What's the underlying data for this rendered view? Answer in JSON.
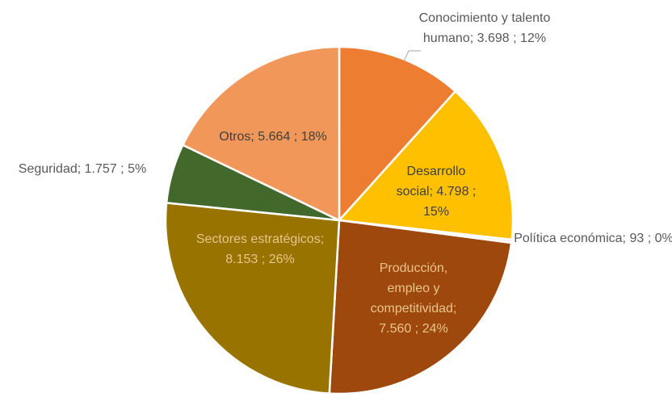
{
  "chart_data": {
    "type": "pie",
    "categories": [
      "Conocimiento y talento humano",
      "Desarrollo social",
      "Política económica",
      "Producción, empleo y competitividad",
      "Sectores estratégicos",
      "Seguridad",
      "Otros"
    ],
    "values": [
      3698,
      4798,
      93,
      7560,
      8153,
      1757,
      5664
    ],
    "value_labels": [
      "3.698",
      "4.798",
      "93",
      "7.560",
      "8.153",
      "1.757",
      "5.664"
    ],
    "percents": [
      12,
      15,
      0,
      24,
      26,
      5,
      18
    ],
    "percent_labels": [
      "12%",
      "15%",
      "0%",
      "24%",
      "26%",
      "5%",
      "18%"
    ],
    "label_separator": ";",
    "colors": [
      "#ED7D31",
      "#FFC000",
      "#F2F2F2",
      "#9E480E",
      "#997300",
      "#43682B",
      "#F1975A"
    ]
  }
}
